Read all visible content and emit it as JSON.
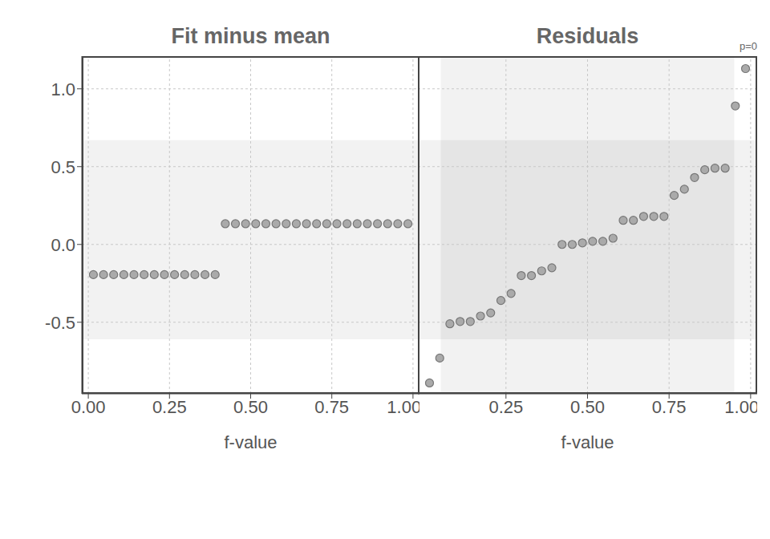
{
  "chart_data": [
    {
      "type": "scatter",
      "title": "Fit minus mean",
      "x_label": "f-value",
      "x": [
        0.0156,
        0.0469,
        0.0781,
        0.1094,
        0.1406,
        0.1719,
        0.2031,
        0.2344,
        0.2656,
        0.2969,
        0.3281,
        0.3594,
        0.3906,
        0.4219,
        0.4531,
        0.4844,
        0.5156,
        0.5469,
        0.5781,
        0.6094,
        0.6406,
        0.6719,
        0.7031,
        0.7344,
        0.7656,
        0.7969,
        0.8281,
        0.8594,
        0.8906,
        0.9219,
        0.9531,
        0.9844
      ],
      "values": [
        -0.194,
        -0.194,
        -0.194,
        -0.194,
        -0.194,
        -0.194,
        -0.194,
        -0.194,
        -0.194,
        -0.194,
        -0.194,
        -0.194,
        -0.194,
        0.133,
        0.133,
        0.133,
        0.133,
        0.133,
        0.133,
        0.133,
        0.133,
        0.133,
        0.133,
        0.133,
        0.133,
        0.133,
        0.133,
        0.133,
        0.133,
        0.133,
        0.133,
        0.133
      ],
      "color": "#aaaaaa",
      "xlim": [
        -0.02,
        1.02
      ],
      "xticks": [
        {
          "value": 0,
          "label": "0.00"
        },
        {
          "value": 0.25,
          "label": "0.25"
        },
        {
          "value": 0.5,
          "label": "0.50"
        },
        {
          "value": 0.75,
          "label": "0.75"
        },
        {
          "value": 1,
          "label": "1.00"
        }
      ],
      "ylim": [
        -0.96,
        1.21
      ],
      "yticks": [
        {
          "value": -0.5,
          "label": "-0.5"
        },
        {
          "value": 0,
          "label": "0.0"
        },
        {
          "value": 0.5,
          "label": "0.5"
        },
        {
          "value": 1,
          "label": "1.0"
        }
      ],
      "grid": true,
      "y_band": [
        -0.61,
        0.67
      ]
    },
    {
      "type": "scatter",
      "title": "Residuals",
      "x_label": "f-value",
      "annotation": "p=0",
      "x": [
        0.0156,
        0.0469,
        0.0781,
        0.1094,
        0.1406,
        0.1719,
        0.2031,
        0.2344,
        0.2656,
        0.2969,
        0.3281,
        0.3594,
        0.3906,
        0.4219,
        0.4531,
        0.4844,
        0.5156,
        0.5469,
        0.5781,
        0.6094,
        0.6406,
        0.6719,
        0.7031,
        0.7344,
        0.7656,
        0.7969,
        0.8281,
        0.8594,
        0.8906,
        0.9219,
        0.9531,
        0.9844
      ],
      "values": [
        -0.89,
        -0.73,
        -0.51,
        -0.495,
        -0.495,
        -0.46,
        -0.44,
        -0.36,
        -0.315,
        -0.2,
        -0.2,
        -0.17,
        -0.15,
        0.0,
        0.0,
        0.01,
        0.02,
        0.02,
        0.04,
        0.155,
        0.155,
        0.18,
        0.18,
        0.18,
        0.315,
        0.355,
        0.43,
        0.48,
        0.49,
        0.49,
        0.89,
        1.13
      ],
      "color": "#aaaaaa",
      "xlim": [
        -0.02,
        1.02
      ],
      "xticks": [
        {
          "value": 0.25,
          "label": "0.25"
        },
        {
          "value": 0.5,
          "label": "0.50"
        },
        {
          "value": 0.75,
          "label": "0.75"
        },
        {
          "value": 1,
          "label": "1.00"
        }
      ],
      "ylim": [
        -0.96,
        1.21
      ],
      "yticks": [
        -0.5,
        0,
        0.5,
        1
      ],
      "grid": true,
      "tick_labels": "x",
      "y_band": [
        -0.61,
        0.67
      ],
      "x_band": [
        0.05,
        0.95
      ]
    }
  ]
}
